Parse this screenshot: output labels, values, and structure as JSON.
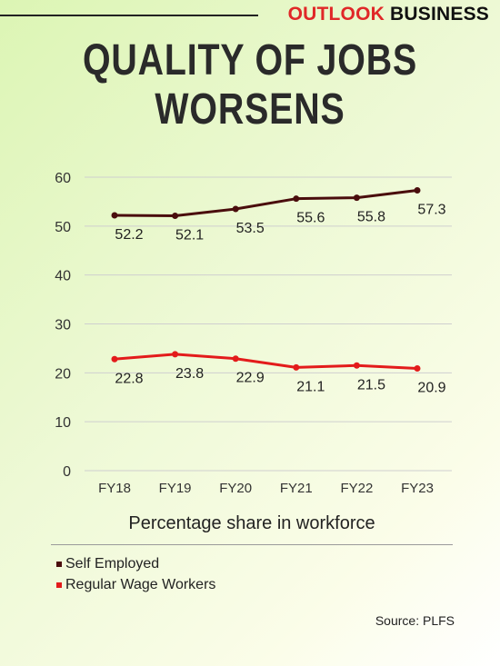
{
  "brand": {
    "part1": "OUTLOOK",
    "part2": "BUSINESS"
  },
  "title_lines": [
    "QUALITY OF JOBS",
    "WORSENS"
  ],
  "chart_data": {
    "type": "line",
    "categories": [
      "FY18",
      "FY19",
      "FY20",
      "FY21",
      "FY22",
      "FY23"
    ],
    "series": [
      {
        "name": "Self Employed",
        "values": [
          52.2,
          52.1,
          53.5,
          55.6,
          55.8,
          57.3
        ],
        "color": "#4a0d0d"
      },
      {
        "name": "Regular Wage Workers",
        "values": [
          22.8,
          23.8,
          22.9,
          21.1,
          21.5,
          20.9
        ],
        "color": "#e31b1b"
      }
    ],
    "xlabel": "Percentage share in workforce",
    "ylabel": "",
    "ylim": [
      0,
      60
    ],
    "yticks": [
      0,
      10,
      20,
      30,
      40,
      50,
      60
    ],
    "grid": true,
    "legend_position": "bottom-left"
  },
  "source": "Source: PLFS"
}
